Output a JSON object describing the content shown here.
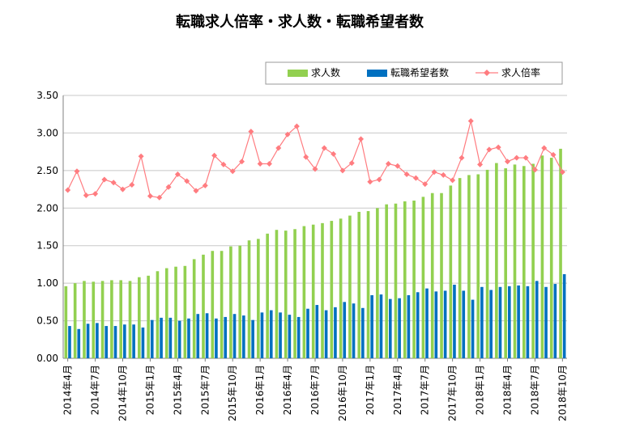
{
  "chart_data": {
    "type": "bar",
    "title": "転職求人倍率・求人数・転職希望者数",
    "ylim": [
      0,
      3.5
    ],
    "y_ticks": [
      "0.00",
      "0.50",
      "1.00",
      "1.50",
      "2.00",
      "2.50",
      "3.00",
      "3.50"
    ],
    "x_tick_labels": [
      "2014年4月",
      "2014年7月",
      "2014年10月",
      "2015年1月",
      "2015年4月",
      "2015年7月",
      "2015年10月",
      "2016年1月",
      "2016年4月",
      "2016年7月",
      "2016年10月",
      "2017年1月",
      "2017年4月",
      "2017年7月",
      "2017年10月",
      "2018年1月",
      "2018年4月",
      "2018年7月",
      "2018年10月"
    ],
    "x_tick_every": 3,
    "grid": "horizontal",
    "legend": "top-right",
    "series": [
      {
        "name": "求人数",
        "type": "bar",
        "color": "#92d050",
        "values": [
          0.96,
          1.0,
          1.03,
          1.02,
          1.03,
          1.04,
          1.04,
          1.03,
          1.08,
          1.1,
          1.16,
          1.2,
          1.22,
          1.23,
          1.32,
          1.38,
          1.43,
          1.43,
          1.49,
          1.5,
          1.57,
          1.59,
          1.66,
          1.71,
          1.7,
          1.72,
          1.76,
          1.78,
          1.8,
          1.83,
          1.86,
          1.9,
          1.95,
          1.96,
          2.0,
          2.05,
          2.06,
          2.09,
          2.1,
          2.15,
          2.2,
          2.2,
          2.3,
          2.4,
          2.44,
          2.45,
          2.51,
          2.6,
          2.53,
          2.58,
          2.56,
          2.59,
          2.7,
          2.67,
          2.79
        ]
      },
      {
        "name": "転職希望者数",
        "type": "bar",
        "color": "#0070c0",
        "values": [
          0.43,
          0.39,
          0.46,
          0.47,
          0.43,
          0.43,
          0.45,
          0.45,
          0.41,
          0.51,
          0.54,
          0.54,
          0.5,
          0.53,
          0.59,
          0.6,
          0.53,
          0.55,
          0.59,
          0.57,
          0.51,
          0.61,
          0.64,
          0.61,
          0.58,
          0.55,
          0.66,
          0.71,
          0.64,
          0.68,
          0.75,
          0.73,
          0.67,
          0.84,
          0.85,
          0.79,
          0.8,
          0.84,
          0.88,
          0.93,
          0.89,
          0.9,
          0.98,
          0.9,
          0.78,
          0.95,
          0.91,
          0.95,
          0.96,
          0.97,
          0.96,
          1.03,
          0.95,
          0.99,
          1.12
        ]
      },
      {
        "name": "求人倍率",
        "type": "line",
        "color": "#ff7c80",
        "values": [
          2.24,
          2.49,
          2.17,
          2.19,
          2.38,
          2.34,
          2.25,
          2.31,
          2.69,
          2.16,
          2.14,
          2.28,
          2.45,
          2.36,
          2.23,
          2.3,
          2.7,
          2.58,
          2.49,
          2.62,
          3.02,
          2.59,
          2.59,
          2.8,
          2.98,
          3.09,
          2.68,
          2.52,
          2.8,
          2.72,
          2.5,
          2.6,
          2.92,
          2.35,
          2.38,
          2.59,
          2.56,
          2.45,
          2.4,
          2.32,
          2.48,
          2.44,
          2.37,
          2.67,
          3.16,
          2.58,
          2.78,
          2.81,
          2.62,
          2.67,
          2.67,
          2.51,
          2.8,
          2.71,
          2.48
        ]
      }
    ]
  }
}
